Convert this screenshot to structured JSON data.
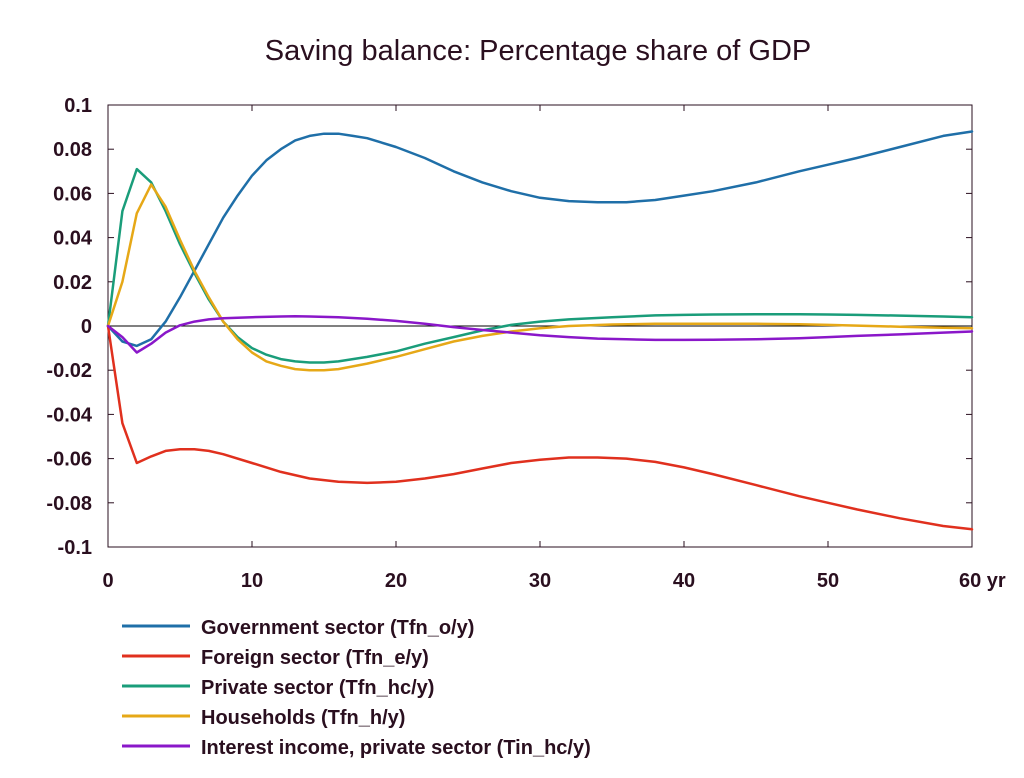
{
  "chart_data": {
    "type": "line",
    "title": "Saving balance: Percentage share of GDP",
    "xlabel": "",
    "ylabel": "",
    "x_unit_label": "yr",
    "xlim": [
      0,
      60
    ],
    "ylim": [
      -0.1,
      0.1
    ],
    "x_ticks": [
      0,
      10,
      20,
      30,
      40,
      50,
      60
    ],
    "x_tick_labels": [
      "0",
      "10",
      "20",
      "30",
      "40",
      "50",
      "60 yr"
    ],
    "y_ticks": [
      0.1,
      0.08,
      0.06,
      0.04,
      0.02,
      0,
      -0.02,
      -0.04,
      -0.06,
      -0.08,
      -0.1
    ],
    "y_tick_labels": [
      "0.1",
      "0.08",
      "0.06",
      "0.04",
      "0.02",
      "0",
      "-0.02",
      "-0.04",
      "-0.06",
      "-0.08",
      "-0.1"
    ],
    "grid": false,
    "zero_line": true,
    "legend_position": "bottom",
    "series": [
      {
        "name": "Government sector (Tfn_o/y)",
        "color": "#1f6fa8",
        "x": [
          0,
          1,
          2,
          3,
          4,
          5,
          6,
          7,
          8,
          9,
          10,
          11,
          12,
          13,
          14,
          15,
          16,
          17,
          18,
          20,
          22,
          24,
          26,
          28,
          30,
          32,
          34,
          36,
          38,
          40,
          42,
          45,
          48,
          50,
          52,
          55,
          58,
          60
        ],
        "y": [
          0,
          -0.007,
          -0.009,
          -0.006,
          0.002,
          0.013,
          0.025,
          0.037,
          0.049,
          0.059,
          0.068,
          0.075,
          0.08,
          0.084,
          0.086,
          0.087,
          0.087,
          0.086,
          0.085,
          0.081,
          0.076,
          0.07,
          0.065,
          0.061,
          0.058,
          0.0565,
          0.056,
          0.056,
          0.057,
          0.059,
          0.061,
          0.065,
          0.07,
          0.073,
          0.076,
          0.081,
          0.086,
          0.088
        ]
      },
      {
        "name": "Foreign sector (Tfn_e/y)",
        "color": "#e0301e",
        "x": [
          0,
          1,
          2,
          3,
          4,
          5,
          6,
          7,
          8,
          10,
          12,
          14,
          16,
          18,
          20,
          22,
          24,
          26,
          28,
          30,
          32,
          34,
          36,
          38,
          40,
          42,
          45,
          48,
          50,
          52,
          55,
          58,
          60
        ],
        "y": [
          0,
          -0.044,
          -0.062,
          -0.059,
          -0.0565,
          -0.0558,
          -0.0558,
          -0.0565,
          -0.058,
          -0.062,
          -0.066,
          -0.069,
          -0.0705,
          -0.071,
          -0.0705,
          -0.069,
          -0.067,
          -0.0645,
          -0.062,
          -0.0605,
          -0.0595,
          -0.0595,
          -0.06,
          -0.0615,
          -0.064,
          -0.067,
          -0.072,
          -0.077,
          -0.08,
          -0.083,
          -0.087,
          -0.0905,
          -0.092
        ]
      },
      {
        "name": "Private sector (Tfn_hc/y)",
        "color": "#1a9d7a",
        "x": [
          0,
          1,
          2,
          3,
          4,
          5,
          6,
          7,
          8,
          9,
          10,
          11,
          12,
          13,
          14,
          15,
          16,
          18,
          20,
          22,
          24,
          26,
          28,
          30,
          32,
          35,
          38,
          40,
          42,
          45,
          48,
          50,
          52,
          55,
          58,
          60
        ],
        "y": [
          0,
          0.052,
          0.071,
          0.065,
          0.052,
          0.037,
          0.024,
          0.012,
          0.002,
          -0.005,
          -0.01,
          -0.013,
          -0.015,
          -0.016,
          -0.0165,
          -0.0165,
          -0.016,
          -0.014,
          -0.0115,
          -0.008,
          -0.005,
          -0.002,
          0.0005,
          0.002,
          0.003,
          0.004,
          0.0048,
          0.005,
          0.0052,
          0.0053,
          0.0053,
          0.0052,
          0.005,
          0.0047,
          0.0043,
          0.004
        ]
      },
      {
        "name": "Households (Tfn_h/y)",
        "color": "#e6a817",
        "x": [
          0,
          1,
          2,
          3,
          4,
          5,
          6,
          7,
          8,
          9,
          10,
          11,
          12,
          13,
          14,
          15,
          16,
          18,
          20,
          22,
          24,
          26,
          28,
          30,
          32,
          35,
          38,
          40,
          42,
          45,
          48,
          50,
          52,
          55,
          58,
          60
        ],
        "y": [
          0,
          0.02,
          0.051,
          0.064,
          0.054,
          0.039,
          0.025,
          0.013,
          0.002,
          -0.006,
          -0.012,
          -0.016,
          -0.018,
          -0.0195,
          -0.02,
          -0.02,
          -0.0195,
          -0.017,
          -0.014,
          -0.0105,
          -0.007,
          -0.0045,
          -0.0025,
          -0.001,
          0.0,
          0.0007,
          0.001,
          0.001,
          0.001,
          0.001,
          0.0008,
          0.0005,
          0.0002,
          -0.0003,
          -0.0008,
          -0.001
        ]
      },
      {
        "name": "Interest income, private sector (Tin_hc/y)",
        "color": "#8a17c9",
        "x": [
          0,
          1,
          2,
          3,
          4,
          5,
          6,
          7,
          8,
          10,
          12,
          13,
          14,
          16,
          18,
          20,
          22,
          24,
          26,
          28,
          30,
          32,
          34,
          36,
          38,
          40,
          42,
          45,
          48,
          50,
          52,
          55,
          58,
          60
        ],
        "y": [
          0,
          -0.005,
          -0.012,
          -0.008,
          -0.003,
          0.0003,
          0.002,
          0.003,
          0.0035,
          0.004,
          0.0043,
          0.0044,
          0.0043,
          0.004,
          0.0033,
          0.0023,
          0.001,
          -0.0005,
          -0.0018,
          -0.003,
          -0.0042,
          -0.005,
          -0.0057,
          -0.006,
          -0.0063,
          -0.0063,
          -0.0062,
          -0.006,
          -0.0055,
          -0.005,
          -0.0045,
          -0.0038,
          -0.003,
          -0.0025
        ]
      }
    ]
  }
}
